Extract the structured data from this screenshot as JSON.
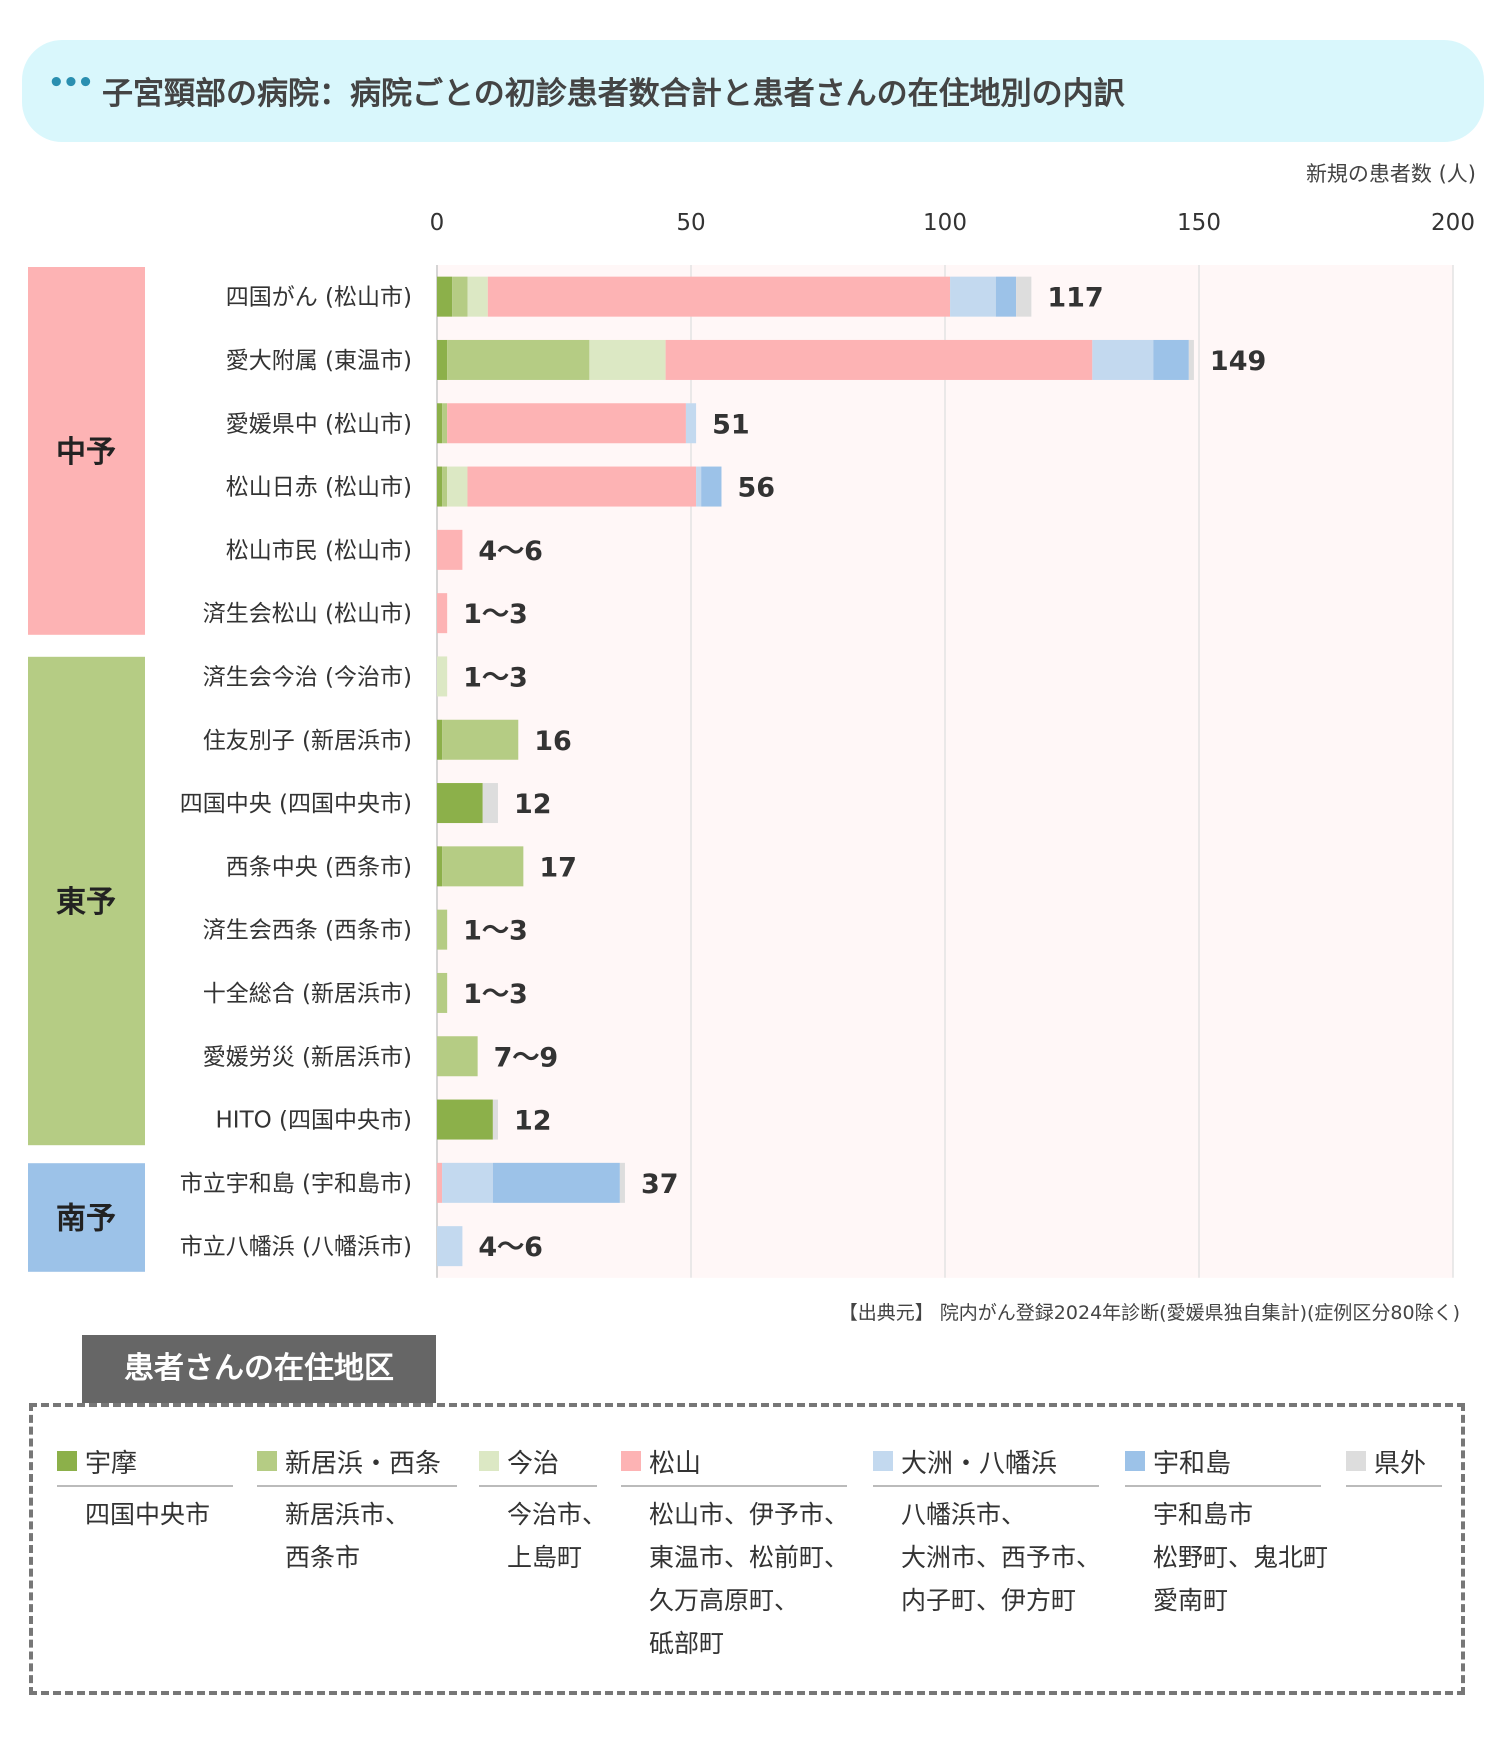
{
  "header": {
    "dots": "•••",
    "title": "子宮頸部の病院：病院ごとの初診患者数合計と患者さんの在住地別の内訳",
    "unit_label": "新規の患者数 (人)"
  },
  "source": "【出典元】 院内がん登録2024年診断(愛媛県独自集計)(症例区分80除く)",
  "legend": {
    "title": "患者さんの在住地区",
    "items": [
      {
        "name": "宇摩",
        "color": "#8cb04a",
        "areas": [
          "四国中央市"
        ]
      },
      {
        "name": "新居浜・西条",
        "color": "#b5cc84",
        "areas": [
          "新居浜市、",
          "西条市"
        ]
      },
      {
        "name": "今治",
        "color": "#dce8c4",
        "areas": [
          "今治市、",
          "上島町"
        ]
      },
      {
        "name": "松山",
        "color": "#fdb3b4",
        "areas": [
          "松山市、伊予市、",
          "東温市、松前町、",
          "久万高原町、",
          "砥部町"
        ]
      },
      {
        "name": "大洲・八幡浜",
        "color": "#c3d9ef",
        "areas": [
          "八幡浜市、",
          "大洲市、西予市、",
          "内子町、伊方町"
        ]
      },
      {
        "name": "宇和島",
        "color": "#9cc2e8",
        "areas": [
          "宇和島市",
          "松野町、鬼北町",
          "愛南町"
        ]
      },
      {
        "name": "県外",
        "color": "#dddddd",
        "areas": []
      }
    ]
  },
  "chart_data": {
    "type": "bar",
    "orientation": "horizontal",
    "stacked": true,
    "xlim": [
      0,
      200
    ],
    "xticks": [
      0,
      50,
      100,
      150,
      200
    ],
    "xlabel": "新規の患者数 (人)",
    "series_names": [
      "宇摩",
      "新居浜・西条",
      "今治",
      "松山",
      "大洲・八幡浜",
      "宇和島",
      "県外"
    ],
    "series_colors": [
      "#8cb04a",
      "#b5cc84",
      "#dce8c4",
      "#fdb3b4",
      "#c3d9ef",
      "#9cc2e8",
      "#dddddd"
    ],
    "regions": [
      {
        "name": "中予",
        "color": "#fdb3b4",
        "start": 0,
        "count": 6
      },
      {
        "name": "東予",
        "color": "#b5cc84",
        "start": 6,
        "count": 8
      },
      {
        "name": "南予",
        "color": "#9cc2e8",
        "start": 14,
        "count": 2
      }
    ],
    "hospitals": [
      {
        "name": "四国がん (松山市)",
        "label": "117",
        "values": [
          3,
          3,
          4,
          91,
          9,
          4,
          3
        ]
      },
      {
        "name": "愛大附属 (東温市)",
        "label": "149",
        "values": [
          2,
          28,
          15,
          84,
          12,
          7,
          1
        ]
      },
      {
        "name": "愛媛県中 (松山市)",
        "label": "51",
        "values": [
          1,
          1,
          0,
          47,
          2,
          0,
          0
        ]
      },
      {
        "name": "松山日赤 (松山市)",
        "label": "56",
        "values": [
          1,
          1,
          4,
          45,
          1,
          4,
          0
        ]
      },
      {
        "name": "松山市民 (松山市)",
        "label": "4～6",
        "values": [
          0,
          0,
          0,
          5,
          0,
          0,
          0
        ]
      },
      {
        "name": "済生会松山 (松山市)",
        "label": "1～3",
        "values": [
          0,
          0,
          0,
          2,
          0,
          0,
          0
        ]
      },
      {
        "name": "済生会今治 (今治市)",
        "label": "1～3",
        "values": [
          0,
          0,
          2,
          0,
          0,
          0,
          0
        ]
      },
      {
        "name": "住友別子 (新居浜市)",
        "label": "16",
        "values": [
          1,
          15,
          0,
          0,
          0,
          0,
          0
        ]
      },
      {
        "name": "四国中央 (四国中央市)",
        "label": "12",
        "values": [
          9,
          0,
          0,
          0,
          0,
          0,
          3
        ]
      },
      {
        "name": "西条中央 (西条市)",
        "label": "17",
        "values": [
          1,
          16,
          0,
          0,
          0,
          0,
          0
        ]
      },
      {
        "name": "済生会西条 (西条市)",
        "label": "1～3",
        "values": [
          0,
          2,
          0,
          0,
          0,
          0,
          0
        ]
      },
      {
        "name": "十全総合 (新居浜市)",
        "label": "1～3",
        "values": [
          0,
          2,
          0,
          0,
          0,
          0,
          0
        ]
      },
      {
        "name": "愛媛労災 (新居浜市)",
        "label": "7～9",
        "values": [
          0,
          8,
          0,
          0,
          0,
          0,
          0
        ]
      },
      {
        "name": "HITO (四国中央市)",
        "label": "12",
        "values": [
          11,
          0,
          0,
          0,
          0,
          0,
          1
        ]
      },
      {
        "name": "市立宇和島 (宇和島市)",
        "label": "37",
        "values": [
          0,
          0,
          0,
          1,
          10,
          25,
          1
        ]
      },
      {
        "name": "市立八幡浜 (八幡浜市)",
        "label": "4～6",
        "values": [
          0,
          0,
          0,
          0,
          5,
          0,
          0
        ]
      }
    ]
  }
}
